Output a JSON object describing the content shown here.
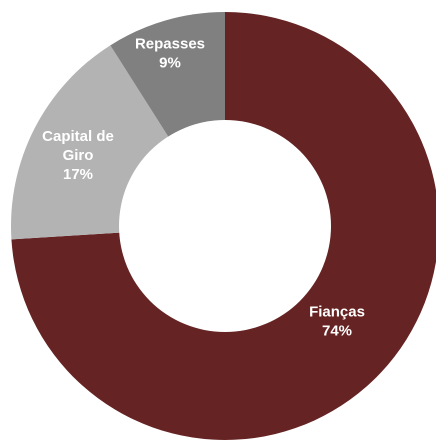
{
  "chart_data": {
    "type": "pie",
    "donut": true,
    "title": "",
    "legend": "none",
    "slices": [
      {
        "label": "Fianças",
        "value": 74,
        "value_label": "74%",
        "color": "#662323"
      },
      {
        "label": "Capital de Giro",
        "value": 17,
        "value_label": "17%",
        "color": "#b3b3b3"
      },
      {
        "label": "Repasses",
        "value": 9,
        "value_label": "9%",
        "color": "#808080"
      }
    ]
  }
}
